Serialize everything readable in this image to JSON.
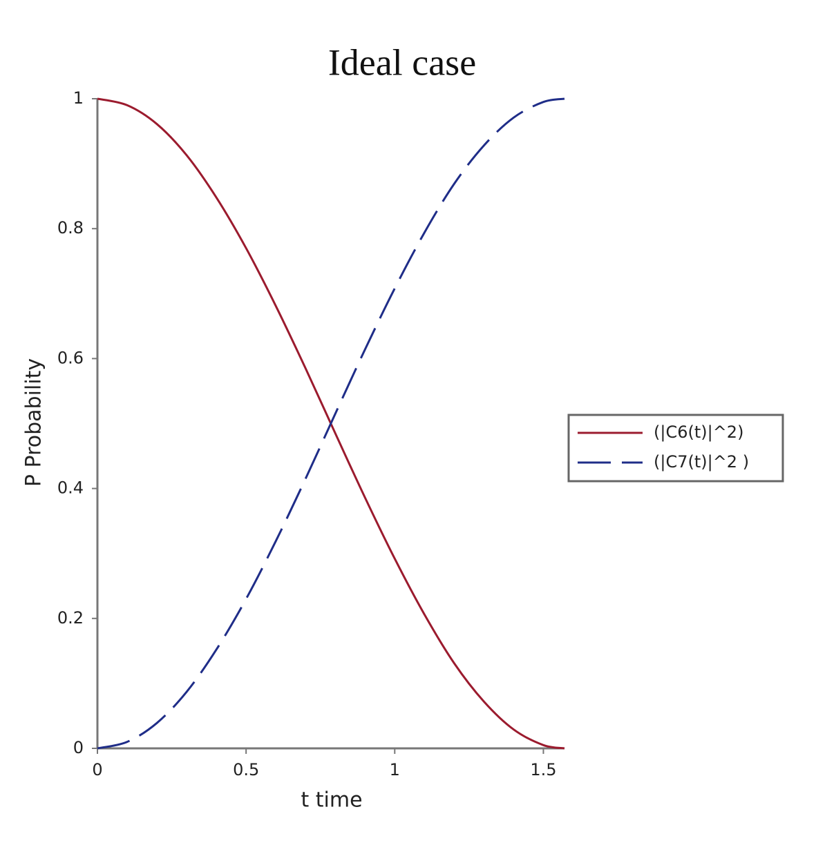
{
  "chart_data": {
    "type": "line",
    "title": "Ideal case",
    "x_label": "t time",
    "y_label": "P Probability",
    "x": [
      0,
      0.1,
      0.2,
      0.3,
      0.4,
      0.5,
      0.6,
      0.7,
      0.8,
      0.9,
      1.0,
      1.1,
      1.2,
      1.3,
      1.4,
      1.5,
      1.571
    ],
    "series": [
      {
        "name": "(|C6(t)|^2)",
        "color": "#9b1b2e",
        "dashed": false,
        "values": [
          1,
          0.99,
          0.961,
          0.913,
          0.848,
          0.77,
          0.681,
          0.585,
          0.485,
          0.386,
          0.292,
          0.206,
          0.131,
          0.072,
          0.029,
          0.005,
          0
        ]
      },
      {
        "name": "(|C7(t)|^2 )",
        "color": "#1f2d88",
        "dashed": true,
        "values": [
          0,
          0.01,
          0.039,
          0.087,
          0.152,
          0.23,
          0.319,
          0.415,
          0.515,
          0.614,
          0.708,
          0.794,
          0.869,
          0.928,
          0.971,
          0.995,
          1
        ]
      }
    ],
    "xlim": [
      0,
      1.571
    ],
    "ylim": [
      0,
      1
    ],
    "xticks": [
      0,
      0.5,
      1,
      1.5
    ],
    "yticks": [
      0,
      0.2,
      0.4,
      0.6,
      0.8,
      1
    ],
    "grid": false,
    "legend": "right"
  }
}
